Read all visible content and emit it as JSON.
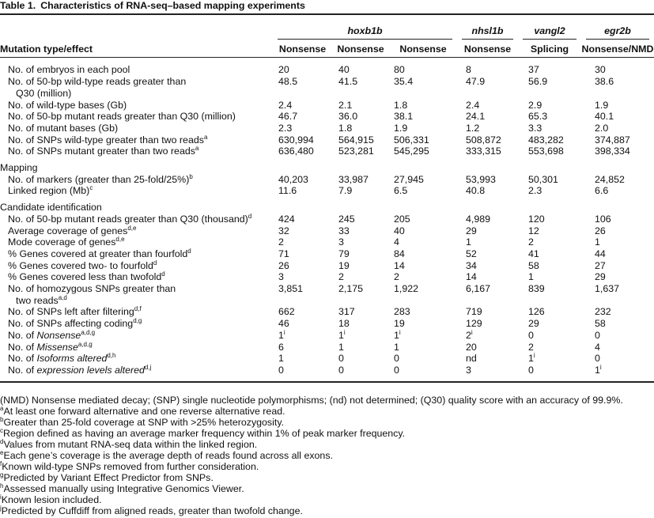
{
  "table": {
    "number": "Table 1.",
    "title": "Characteristics of RNA-seq–based mapping experiments",
    "groups": [
      {
        "name": "hoxb1b",
        "span": 3
      },
      {
        "name": "nhsl1b",
        "span": 1
      },
      {
        "name": "vangl2",
        "span": 1
      },
      {
        "name": "egr2b",
        "span": 1
      }
    ],
    "row_header": "Mutation type/effect",
    "columns": [
      "Nonsense",
      "Nonsense",
      "Nonsense",
      "Nonsense",
      "Splicing",
      "Nonsense/NMD"
    ],
    "sections": [
      {
        "rows": [
          {
            "label": "No. of embryos in each pool",
            "values": [
              "20",
              "40",
              "80",
              "8",
              "37",
              "30"
            ]
          },
          {
            "label": [
              "No. of 50-bp wild-type reads greater than",
              "Q30 (million)"
            ],
            "values": [
              "48.5",
              "41.5",
              "35.4",
              "47.9",
              "56.9",
              "38.6"
            ]
          },
          {
            "label": "No. of wild-type bases (Gb)",
            "values": [
              "2.4",
              "2.1",
              "1.8",
              "2.4",
              "2.9",
              "1.9"
            ]
          },
          {
            "label": "No. of 50-bp mutant reads greater than Q30 (million)",
            "values": [
              "46.7",
              "36.0",
              "38.1",
              "24.1",
              "65.3",
              "40.1"
            ]
          },
          {
            "label": "No. of mutant bases (Gb)",
            "values": [
              "2.3",
              "1.8",
              "1.9",
              "1.2",
              "3.3",
              "2.0"
            ]
          },
          {
            "label": "No. of SNPs wild-type greater than two reads",
            "note": "a",
            "values": [
              "630,994",
              "564,915",
              "506,331",
              "508,872",
              "483,282",
              "374,887"
            ]
          },
          {
            "label": "No. of SNPs mutant greater than two reads",
            "note": "a",
            "values": [
              "636,480",
              "523,281",
              "545,295",
              "333,315",
              "553,698",
              "398,334"
            ]
          }
        ]
      },
      {
        "title": "Mapping",
        "rows": [
          {
            "label": "No. of markers (greater than 25-fold/25%)",
            "note": "b",
            "values": [
              "40,203",
              "33,987",
              "27,945",
              "53,993",
              "50,301",
              "24,852"
            ]
          },
          {
            "label": "Linked region (Mb)",
            "note": "c",
            "values": [
              "11.6",
              "7.9",
              "6.5",
              "40.8",
              "2.3",
              "6.6"
            ]
          }
        ]
      },
      {
        "title": "Candidate identification",
        "rows": [
          {
            "label": "No. of 50-bp mutant reads greater than Q30 (thousand)",
            "note": "d",
            "values": [
              "424",
              "245",
              "205",
              "4,989",
              "120",
              "106"
            ]
          },
          {
            "label": "Average coverage of genes",
            "note": "d,e",
            "values": [
              "32",
              "33",
              "40",
              "29",
              "12",
              "26"
            ]
          },
          {
            "label": "Mode coverage of genes",
            "note": "d,e",
            "values": [
              "2",
              "3",
              "4",
              "1",
              "2",
              "1"
            ]
          },
          {
            "label": "% Genes covered at greater than fourfold",
            "note": "d",
            "values": [
              "71",
              "79",
              "84",
              "52",
              "41",
              "44"
            ]
          },
          {
            "label": "% Genes covered two- to fourfold",
            "note": "d",
            "values": [
              "26",
              "19",
              "14",
              "34",
              "58",
              "27"
            ]
          },
          {
            "label": "% Genes covered less than twofold",
            "note": "d",
            "values": [
              "3",
              "2",
              "2",
              "14",
              "1",
              "29"
            ]
          },
          {
            "label": [
              "No. of homozygous SNPs greater than",
              "two reads"
            ],
            "note": "a,d",
            "values": [
              "3,851",
              "2,175",
              "1,922",
              "6,167",
              "839",
              "1,637"
            ]
          },
          {
            "label": "No. of SNPs left after filtering",
            "note": "d,f",
            "values": [
              "662",
              "317",
              "283",
              "719",
              "126",
              "232"
            ]
          },
          {
            "label": "No. of SNPs affecting coding",
            "note": "d,g",
            "values": [
              "46",
              "18",
              "19",
              "129",
              "29",
              "58"
            ]
          },
          {
            "label": "No. of ",
            "italic": "Nonsense",
            "note": "a,d,g",
            "values": [
              {
                "text": "1",
                "note": "i"
              },
              {
                "text": "1",
                "note": "i"
              },
              {
                "text": "1",
                "note": "i"
              },
              {
                "text": "2",
                "note": "i"
              },
              "0",
              "0"
            ]
          },
          {
            "label": "No. of ",
            "italic": "Missense",
            "note": "a,d,g",
            "values": [
              "6",
              "1",
              "1",
              "20",
              "2",
              "4"
            ]
          },
          {
            "label": "No. of ",
            "italic": "Isoforms altered",
            "note": "d,h",
            "values": [
              "1",
              "0",
              "0",
              "nd",
              {
                "text": "1",
                "note": "i"
              },
              "0"
            ]
          },
          {
            "label": "No. of ",
            "italic": "expression levels altered",
            "note": "d,j",
            "values": [
              "0",
              "0",
              "0",
              "3",
              "0",
              {
                "text": "1",
                "note": "i"
              }
            ]
          }
        ]
      }
    ],
    "footnotes": [
      "(NMD) Nonsense mediated decay; (SNP) single nucleotide polymorphisms; (nd) not determined; (Q30) quality score with an accuracy of 99.9%.",
      {
        "mark": "a",
        "text": "At least one forward alternative and one reverse alternative read."
      },
      {
        "mark": "b",
        "text": "Greater than 25-fold coverage at SNP with >25% heterozygosity."
      },
      {
        "mark": "c",
        "text": "Region defined as having an average marker frequency within 1% of peak marker frequency."
      },
      {
        "mark": "d",
        "text": "Values from mutant RNA-seq data within the linked region."
      },
      {
        "mark": "e",
        "text": "Each gene’s coverage is the average depth of reads found across all exons."
      },
      {
        "mark": "f",
        "text": "Known wild-type SNPs removed from further consideration."
      },
      {
        "mark": "g",
        "text": "Predicted by Variant Effect Predictor from SNPs."
      },
      {
        "mark": "h",
        "text": "Assessed manually using Integrative Genomics Viewer."
      },
      {
        "mark": "i",
        "text": "Known lesion included."
      },
      {
        "mark": "j",
        "text": "Predicted by Cuffdiff from aligned reads, greater than twofold change."
      }
    ]
  }
}
